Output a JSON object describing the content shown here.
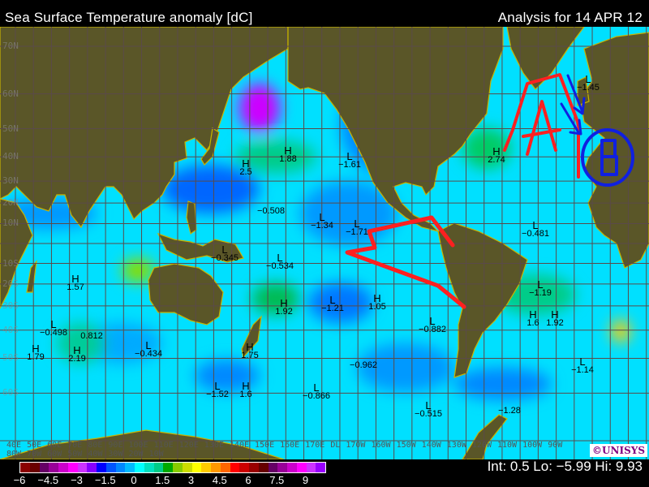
{
  "header": {
    "title": "Sea Surface Temperature anomaly [dC]",
    "analysis": "Analysis for 14 APR 12"
  },
  "map": {
    "colors": {
      "ocean": "#00e0ff",
      "land": "#5a5628",
      "border": "#c8b400",
      "grid": "#5a4a4a",
      "annotation_red": "#ff2020",
      "annotation_blue": "#1020e0"
    },
    "lat_labels": [
      "70N",
      "60N",
      "50N",
      "40N",
      "30N",
      "20N",
      "10N",
      "10S",
      "20S",
      "30S",
      "40S",
      "50S",
      "60S"
    ],
    "lon_labels": "40E 50E 60E 70E 80E 90E 100E 110E 120E 130E 140E 150E 160E 170E DL 170W 160W 150W 140W 130W 120W 110W 100W 90W 80W 70W 60W 50W 40W 30W 20W 10W",
    "markers": [
      {
        "type": "H",
        "value": "2.5"
      },
      {
        "type": "H",
        "value": "1.88"
      },
      {
        "type": "L",
        "value": "−1.61"
      },
      {
        "type": "",
        "value": "−0.508"
      },
      {
        "type": "L",
        "value": "−1.34"
      },
      {
        "type": "L",
        "value": "−1.71"
      },
      {
        "type": "L",
        "value": "−0.345"
      },
      {
        "type": "L",
        "value": "−0.534"
      },
      {
        "type": "H",
        "value": "2.74"
      },
      {
        "type": "L",
        "value": "−1.45"
      },
      {
        "type": "L",
        "value": "−0.481"
      },
      {
        "type": "H",
        "value": "1.57"
      },
      {
        "type": "L",
        "value": "−1.21"
      },
      {
        "type": "H",
        "value": "1.05"
      },
      {
        "type": "H",
        "value": "1.92"
      },
      {
        "type": "L",
        "value": "−0.882"
      },
      {
        "type": "H",
        "value": "1.6"
      },
      {
        "type": "H",
        "value": "1.92"
      },
      {
        "type": "L",
        "value": "−1.19"
      },
      {
        "type": "",
        "value": "0.812"
      },
      {
        "type": "L",
        "value": "−0.498"
      },
      {
        "type": "H",
        "value": "1.79"
      },
      {
        "type": "H",
        "value": "2.19"
      },
      {
        "type": "L",
        "value": "−0.434"
      },
      {
        "type": "H",
        "value": "1.75"
      },
      {
        "type": "",
        "value": "−0.962"
      },
      {
        "type": "L",
        "value": "−1.14"
      },
      {
        "type": "L",
        "value": "−1.52"
      },
      {
        "type": "H",
        "value": "1.6"
      },
      {
        "type": "L",
        "value": "−0.866"
      },
      {
        "type": "L",
        "value": "−0.515"
      },
      {
        "type": "",
        "value": "−1.28"
      }
    ],
    "annotations": {
      "letter_a": "A",
      "letter_b": "B"
    },
    "logo": "©UNISYS"
  },
  "legend": {
    "colors": [
      "#8b0000",
      "#6a0000",
      "#660066",
      "#990099",
      "#cc00cc",
      "#ff00ff",
      "#cc33ff",
      "#8800ff",
      "#0000ff",
      "#0055ff",
      "#0088ff",
      "#00bbff",
      "#00ffff",
      "#00e0c0",
      "#00cc88",
      "#00aa00",
      "#88cc00",
      "#ccdd00",
      "#ffff00",
      "#ffcc00",
      "#ff9900",
      "#ff6600",
      "#ff0000",
      "#cc0000",
      "#990000",
      "#660000",
      "#660066",
      "#990099",
      "#cc00cc",
      "#ff00ff",
      "#cc33ff",
      "#9900ff"
    ],
    "range": [
      -6,
      10
    ],
    "ticks": [
      "−6",
      "−4.5",
      "−3",
      "−1.5",
      "0",
      "1.5",
      "3",
      "4.5",
      "6",
      "7.5",
      "9"
    ]
  },
  "stats": {
    "interval": "Int: 0.5",
    "low": "Lo: −5.99",
    "high": "Hi: 9.93"
  }
}
